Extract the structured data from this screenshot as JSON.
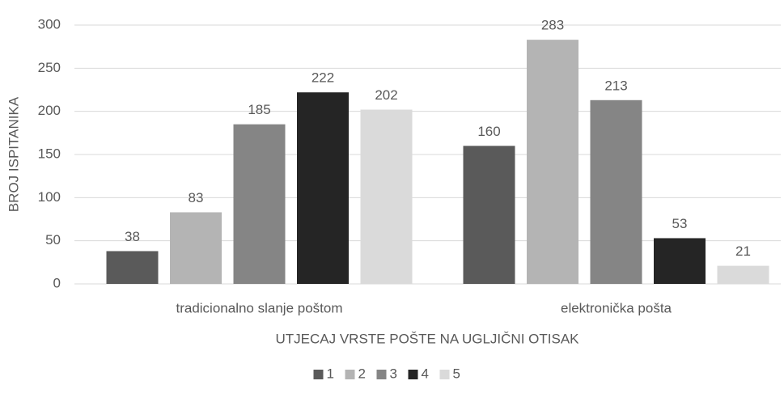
{
  "chart_data": {
    "type": "bar",
    "x_axis_label": "UTJECAJ VRSTE POŠTE NA UGLJIČNI OTISAK",
    "y_axis_label": "BROJ ISPITANIKA",
    "categories": [
      "tradicionalno slanje poštom",
      "elektronička pošta"
    ],
    "series": [
      {
        "name": "1",
        "color": "#5a5a5a",
        "values": [
          38,
          160
        ]
      },
      {
        "name": "2",
        "color": "#b4b4b4",
        "values": [
          83,
          283
        ]
      },
      {
        "name": "3",
        "color": "#858585",
        "values": [
          185,
          213
        ]
      },
      {
        "name": "4",
        "color": "#252525",
        "values": [
          222,
          53
        ]
      },
      {
        "name": "5",
        "color": "#dadada",
        "values": [
          202,
          21
        ]
      }
    ],
    "ylim": [
      0,
      300
    ],
    "yticks": [
      0,
      50,
      100,
      150,
      200,
      250,
      300
    ],
    "grid": true,
    "legend": "bottom"
  }
}
